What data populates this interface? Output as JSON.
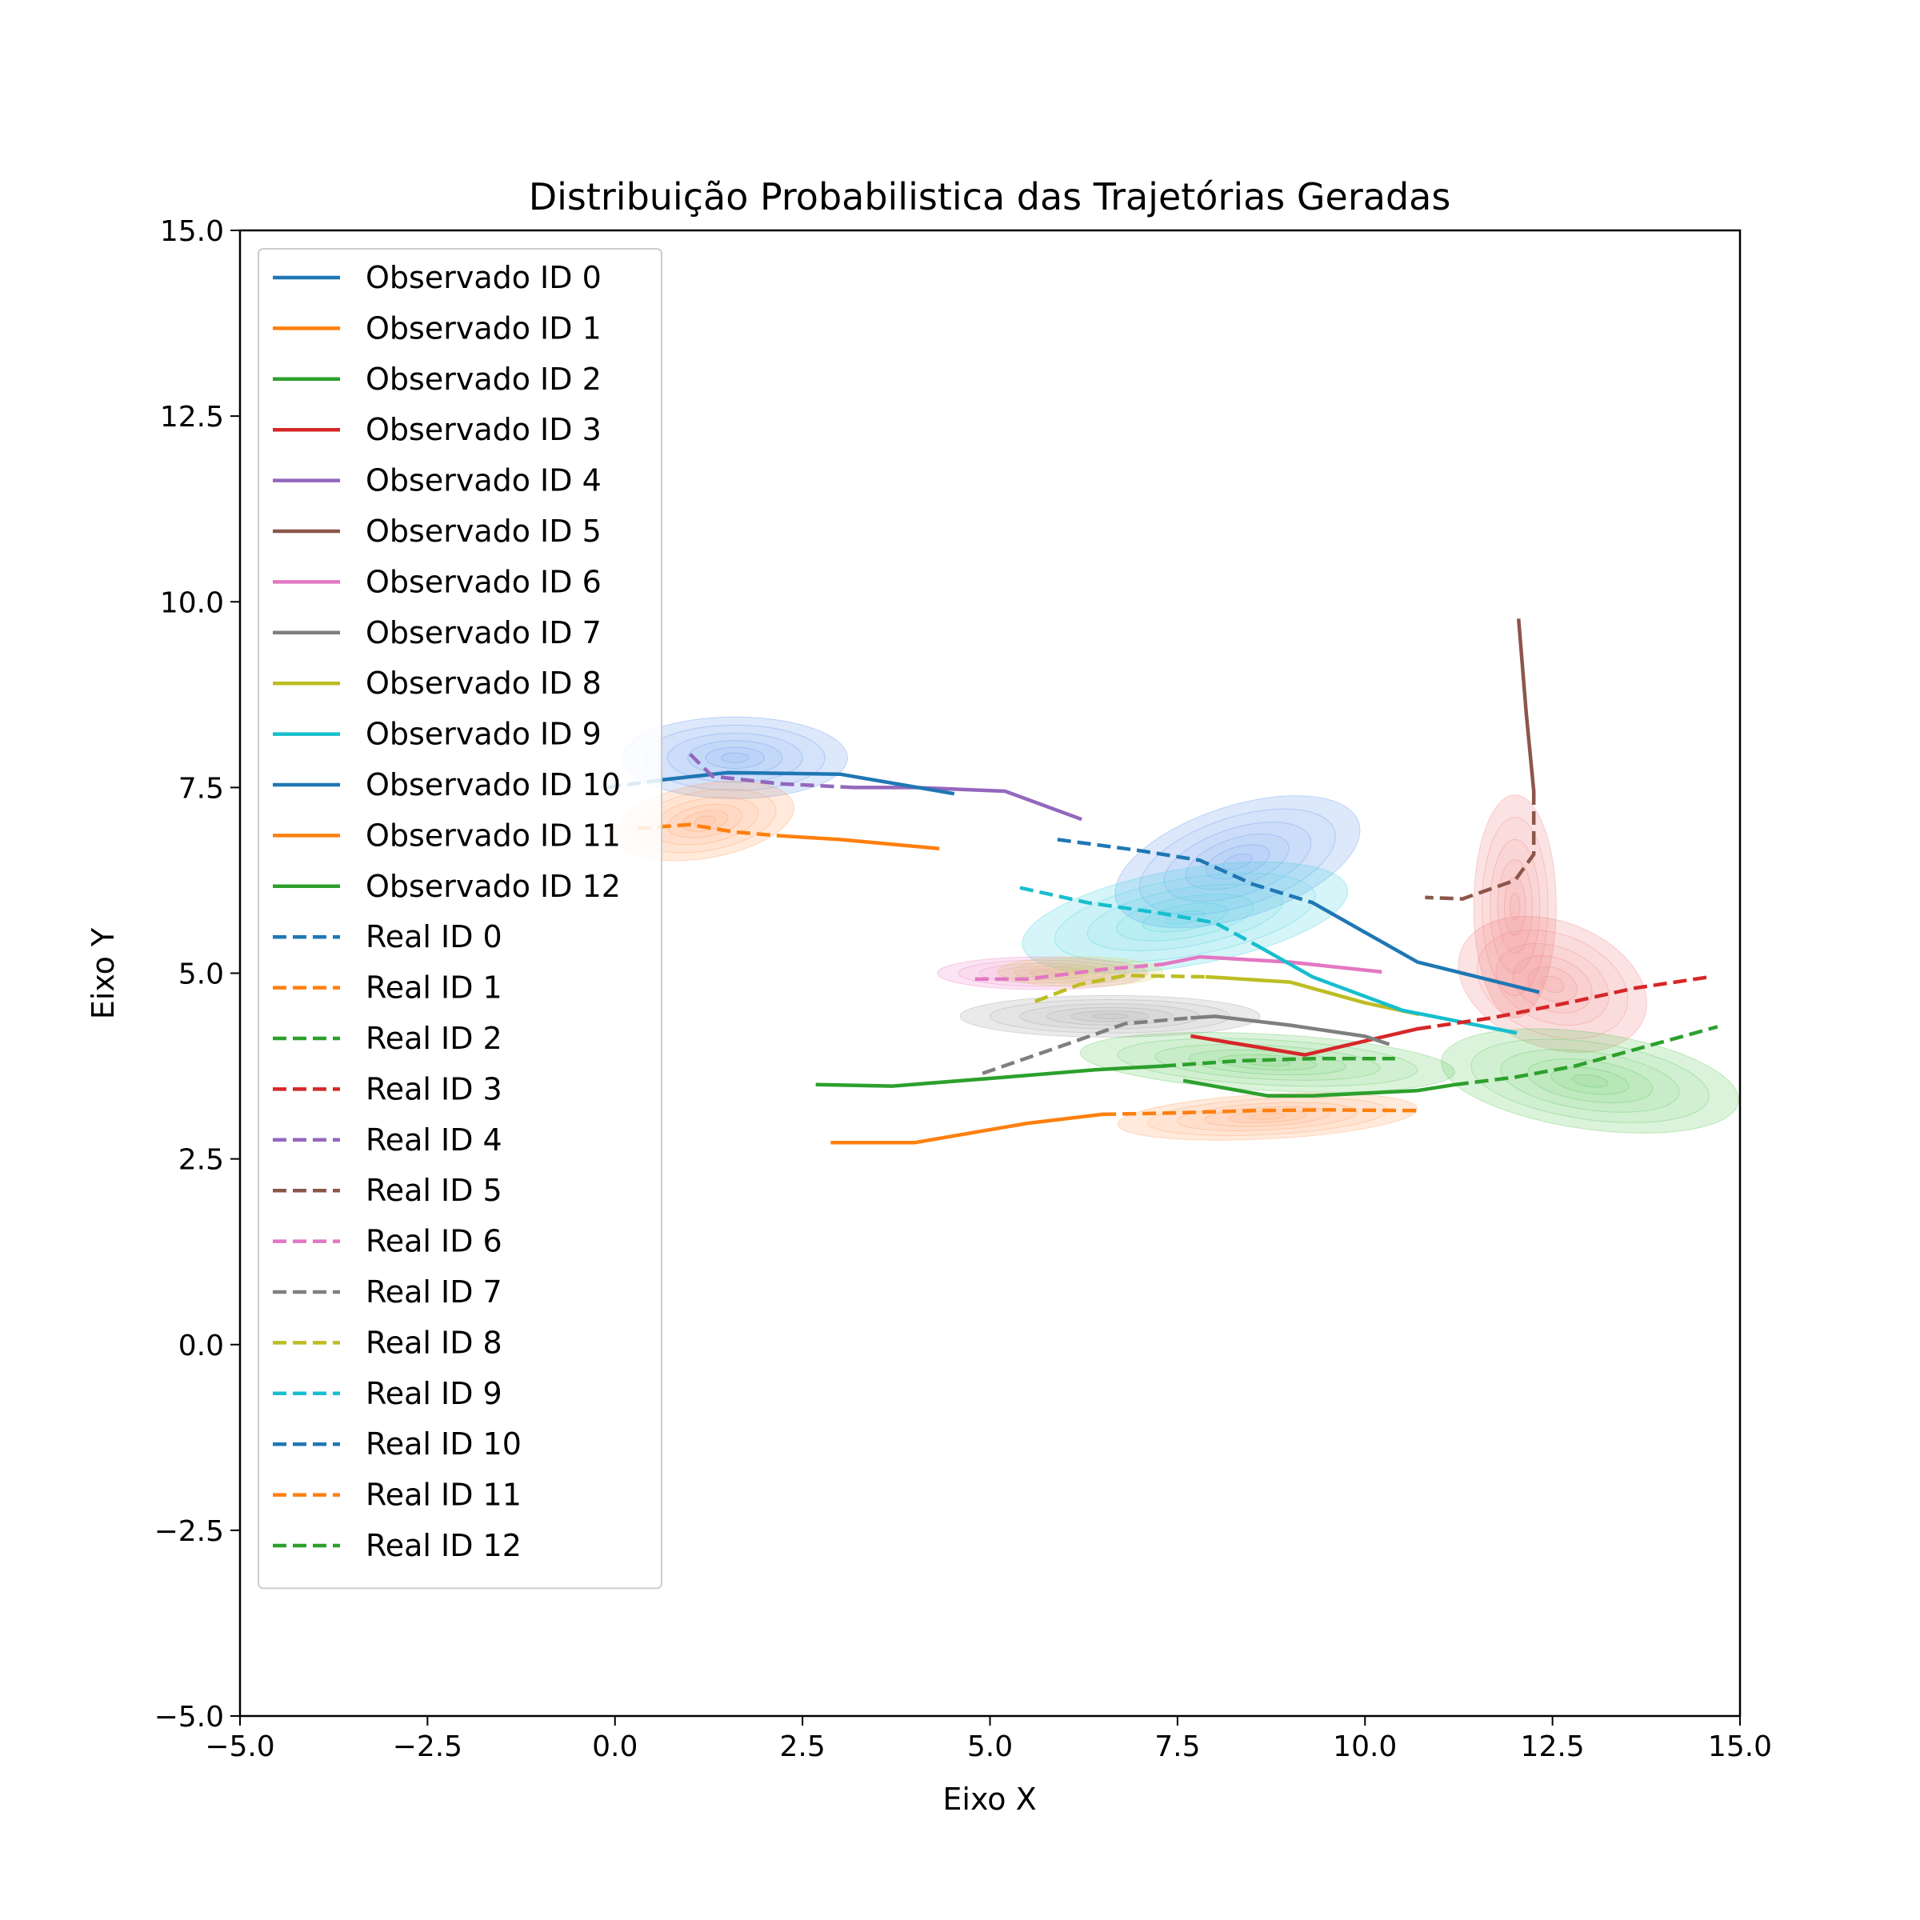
{
  "chart_data": {
    "type": "line",
    "title": "Distribuição Probabilistica das Trajetórias Geradas",
    "xlabel": "Eixo X",
    "ylabel": "Eixo Y",
    "xlim": [
      -5,
      15
    ],
    "ylim": [
      -5,
      15
    ],
    "xticks": [
      "−5.0",
      "−2.5",
      "0.0",
      "2.5",
      "5.0",
      "7.5",
      "10.0",
      "12.5",
      "15.0"
    ],
    "yticks": [
      "−5.0",
      "−2.5",
      "0.0",
      "2.5",
      "5.0",
      "7.5",
      "10.0",
      "12.5",
      "15.0"
    ],
    "grid": false,
    "legend_position": "upper-left",
    "observed": [
      {
        "name": "Observado ID 0",
        "color": "#1f77b4",
        "points": [
          [
            9.3,
            5.95
          ],
          [
            10.7,
            5.15
          ],
          [
            12.3,
            4.75
          ]
        ]
      },
      {
        "name": "Observado ID 1",
        "color": "#ff7f0e",
        "points": [
          [
            2.9,
            2.72
          ],
          [
            4.0,
            2.72
          ],
          [
            5.5,
            2.98
          ],
          [
            6.5,
            3.1
          ]
        ]
      },
      {
        "name": "Observado ID 2",
        "color": "#2ca02c",
        "points": [
          [
            2.7,
            3.5
          ],
          [
            3.7,
            3.48
          ],
          [
            5.2,
            3.6
          ],
          [
            6.4,
            3.7
          ],
          [
            7.3,
            3.75
          ]
        ]
      },
      {
        "name": "Observado ID 3",
        "color": "#d62728",
        "points": [
          [
            7.7,
            4.15
          ],
          [
            9.2,
            3.9
          ],
          [
            10.7,
            4.25
          ]
        ]
      },
      {
        "name": "Observado ID 4",
        "color": "#9467bd",
        "points": [
          [
            3.2,
            7.5
          ],
          [
            4.0,
            7.5
          ],
          [
            5.2,
            7.45
          ],
          [
            6.2,
            7.08
          ]
        ]
      },
      {
        "name": "Observado ID 5",
        "color": "#8c564b",
        "points": [
          [
            12.05,
            9.75
          ],
          [
            12.15,
            8.5
          ],
          [
            12.25,
            7.45
          ]
        ]
      },
      {
        "name": "Observado ID 6",
        "color": "#e377c2",
        "points": [
          [
            7.3,
            5.12
          ],
          [
            7.8,
            5.22
          ],
          [
            9.0,
            5.15
          ],
          [
            10.2,
            5.02
          ]
        ]
      },
      {
        "name": "Observado ID 7",
        "color": "#7f7f7f",
        "points": [
          [
            7.7,
            4.4
          ],
          [
            8.0,
            4.42
          ],
          [
            9.0,
            4.3
          ],
          [
            10.0,
            4.15
          ],
          [
            10.3,
            4.05
          ]
        ]
      },
      {
        "name": "Observado ID 8",
        "color": "#bcbd22",
        "points": [
          [
            7.9,
            4.95
          ],
          [
            9.0,
            4.88
          ],
          [
            10.0,
            4.6
          ],
          [
            10.7,
            4.45
          ]
        ]
      },
      {
        "name": "Observado ID 9",
        "color": "#17becf",
        "points": [
          [
            8.6,
            5.35
          ],
          [
            9.3,
            4.95
          ],
          [
            10.5,
            4.5
          ],
          [
            12.0,
            4.2
          ]
        ]
      },
      {
        "name": "Observado ID 10",
        "color": "#1f77b4",
        "points": [
          [
            0.6,
            7.6
          ],
          [
            1.5,
            7.7
          ],
          [
            3.0,
            7.68
          ],
          [
            4.5,
            7.42
          ]
        ]
      },
      {
        "name": "Observado ID 11",
        "color": "#ff7f0e",
        "points": [
          [
            2.2,
            6.85
          ],
          [
            3.0,
            6.8
          ],
          [
            4.3,
            6.68
          ]
        ]
      },
      {
        "name": "Observado ID 12",
        "color": "#2ca02c",
        "points": [
          [
            7.6,
            3.55
          ],
          [
            8.7,
            3.35
          ],
          [
            9.3,
            3.35
          ],
          [
            10.7,
            3.42
          ],
          [
            11.2,
            3.5
          ]
        ]
      }
    ],
    "real": [
      {
        "name": "Real ID 0",
        "color": "#1f77b4",
        "points": [
          [
            5.9,
            6.8
          ],
          [
            7.0,
            6.65
          ],
          [
            7.8,
            6.52
          ],
          [
            8.5,
            6.2
          ],
          [
            9.3,
            5.95
          ]
        ]
      },
      {
        "name": "Real ID 1",
        "color": "#ff7f0e",
        "points": [
          [
            6.5,
            3.1
          ],
          [
            7.5,
            3.12
          ],
          [
            8.5,
            3.15
          ],
          [
            9.5,
            3.16
          ],
          [
            10.7,
            3.15
          ]
        ]
      },
      {
        "name": "Real ID 2",
        "color": "#2ca02c",
        "points": [
          [
            7.3,
            3.75
          ],
          [
            8.3,
            3.82
          ],
          [
            9.3,
            3.85
          ],
          [
            10.4,
            3.85
          ]
        ]
      },
      {
        "name": "Real ID 3",
        "color": "#d62728",
        "points": [
          [
            10.7,
            4.25
          ],
          [
            11.7,
            4.4
          ],
          [
            12.7,
            4.6
          ],
          [
            13.6,
            4.8
          ],
          [
            14.6,
            4.95
          ]
        ]
      },
      {
        "name": "Real ID 4",
        "color": "#9467bd",
        "points": [
          [
            1.0,
            7.95
          ],
          [
            1.3,
            7.65
          ],
          [
            2.2,
            7.55
          ],
          [
            3.2,
            7.5
          ]
        ]
      },
      {
        "name": "Real ID 5",
        "color": "#8c564b",
        "points": [
          [
            12.25,
            7.45
          ],
          [
            12.25,
            6.6
          ],
          [
            12.0,
            6.25
          ],
          [
            11.3,
            6.0
          ],
          [
            10.8,
            6.02
          ]
        ]
      },
      {
        "name": "Real ID 6",
        "color": "#e377c2",
        "points": [
          [
            4.8,
            4.92
          ],
          [
            5.5,
            4.92
          ],
          [
            6.5,
            5.05
          ],
          [
            7.3,
            5.12
          ]
        ]
      },
      {
        "name": "Real ID 7",
        "color": "#7f7f7f",
        "points": [
          [
            4.9,
            3.65
          ],
          [
            5.9,
            4.0
          ],
          [
            6.8,
            4.32
          ],
          [
            7.7,
            4.4
          ]
        ]
      },
      {
        "name": "Real ID 8",
        "color": "#bcbd22",
        "points": [
          [
            5.6,
            4.62
          ],
          [
            6.2,
            4.85
          ],
          [
            6.8,
            4.97
          ],
          [
            7.9,
            4.95
          ]
        ]
      },
      {
        "name": "Real ID 9",
        "color": "#17becf",
        "points": [
          [
            5.4,
            6.15
          ],
          [
            6.3,
            5.95
          ],
          [
            7.2,
            5.82
          ],
          [
            8.0,
            5.68
          ],
          [
            8.6,
            5.35
          ]
        ]
      },
      {
        "name": "Real ID 10",
        "color": "#1f77b4",
        "points": [
          [
            -0.1,
            7.5
          ],
          [
            0.6,
            7.6
          ]
        ]
      },
      {
        "name": "Real ID 11",
        "color": "#ff7f0e",
        "points": [
          [
            0.3,
            6.95
          ],
          [
            1.0,
            7.0
          ],
          [
            1.6,
            6.9
          ],
          [
            2.2,
            6.85
          ]
        ]
      },
      {
        "name": "Real ID 12",
        "color": "#2ca02c",
        "points": [
          [
            11.2,
            3.5
          ],
          [
            12.0,
            3.6
          ],
          [
            12.8,
            3.75
          ],
          [
            13.7,
            4.0
          ],
          [
            14.7,
            4.28
          ]
        ]
      }
    ],
    "density": [
      {
        "color": "#6495ed",
        "center": [
          1.6,
          7.9
        ],
        "radius": [
          1.5,
          0.55
        ],
        "rotate": 0
      },
      {
        "color": "#ff9e5e",
        "center": [
          1.2,
          7.05
        ],
        "radius": [
          1.2,
          0.5
        ],
        "rotate": 10
      },
      {
        "color": "#6495ed",
        "center": [
          8.3,
          6.5
        ],
        "radius": [
          1.7,
          0.75
        ],
        "rotate": 18
      },
      {
        "color": "#40d0e0",
        "center": [
          7.6,
          5.75
        ],
        "radius": [
          2.2,
          0.65
        ],
        "rotate": 10
      },
      {
        "color": "#ee82c8",
        "center": [
          5.7,
          5.0
        ],
        "radius": [
          1.4,
          0.22
        ],
        "rotate": 0
      },
      {
        "color": "#d4d060",
        "center": [
          6.2,
          5.02
        ],
        "radius": [
          1.1,
          0.2
        ],
        "rotate": 0
      },
      {
        "color": "#a0a0a0",
        "center": [
          6.6,
          4.42
        ],
        "radius": [
          2.0,
          0.28
        ],
        "rotate": 0
      },
      {
        "color": "#5ac85a",
        "center": [
          8.7,
          3.8
        ],
        "radius": [
          2.5,
          0.38
        ],
        "rotate": -3
      },
      {
        "color": "#ff9e5e",
        "center": [
          8.7,
          3.07
        ],
        "radius": [
          2.0,
          0.3
        ],
        "rotate": 3
      },
      {
        "color": "#f08080",
        "center": [
          12.0,
          5.9
        ],
        "radius": [
          0.55,
          1.5
        ],
        "rotate": 0
      },
      {
        "color": "#f08080",
        "center": [
          12.5,
          4.85
        ],
        "radius": [
          1.3,
          0.85
        ],
        "rotate": -20
      },
      {
        "color": "#5ac85a",
        "center": [
          13.0,
          3.55
        ],
        "radius": [
          2.0,
          0.65
        ],
        "rotate": -8
      }
    ]
  }
}
